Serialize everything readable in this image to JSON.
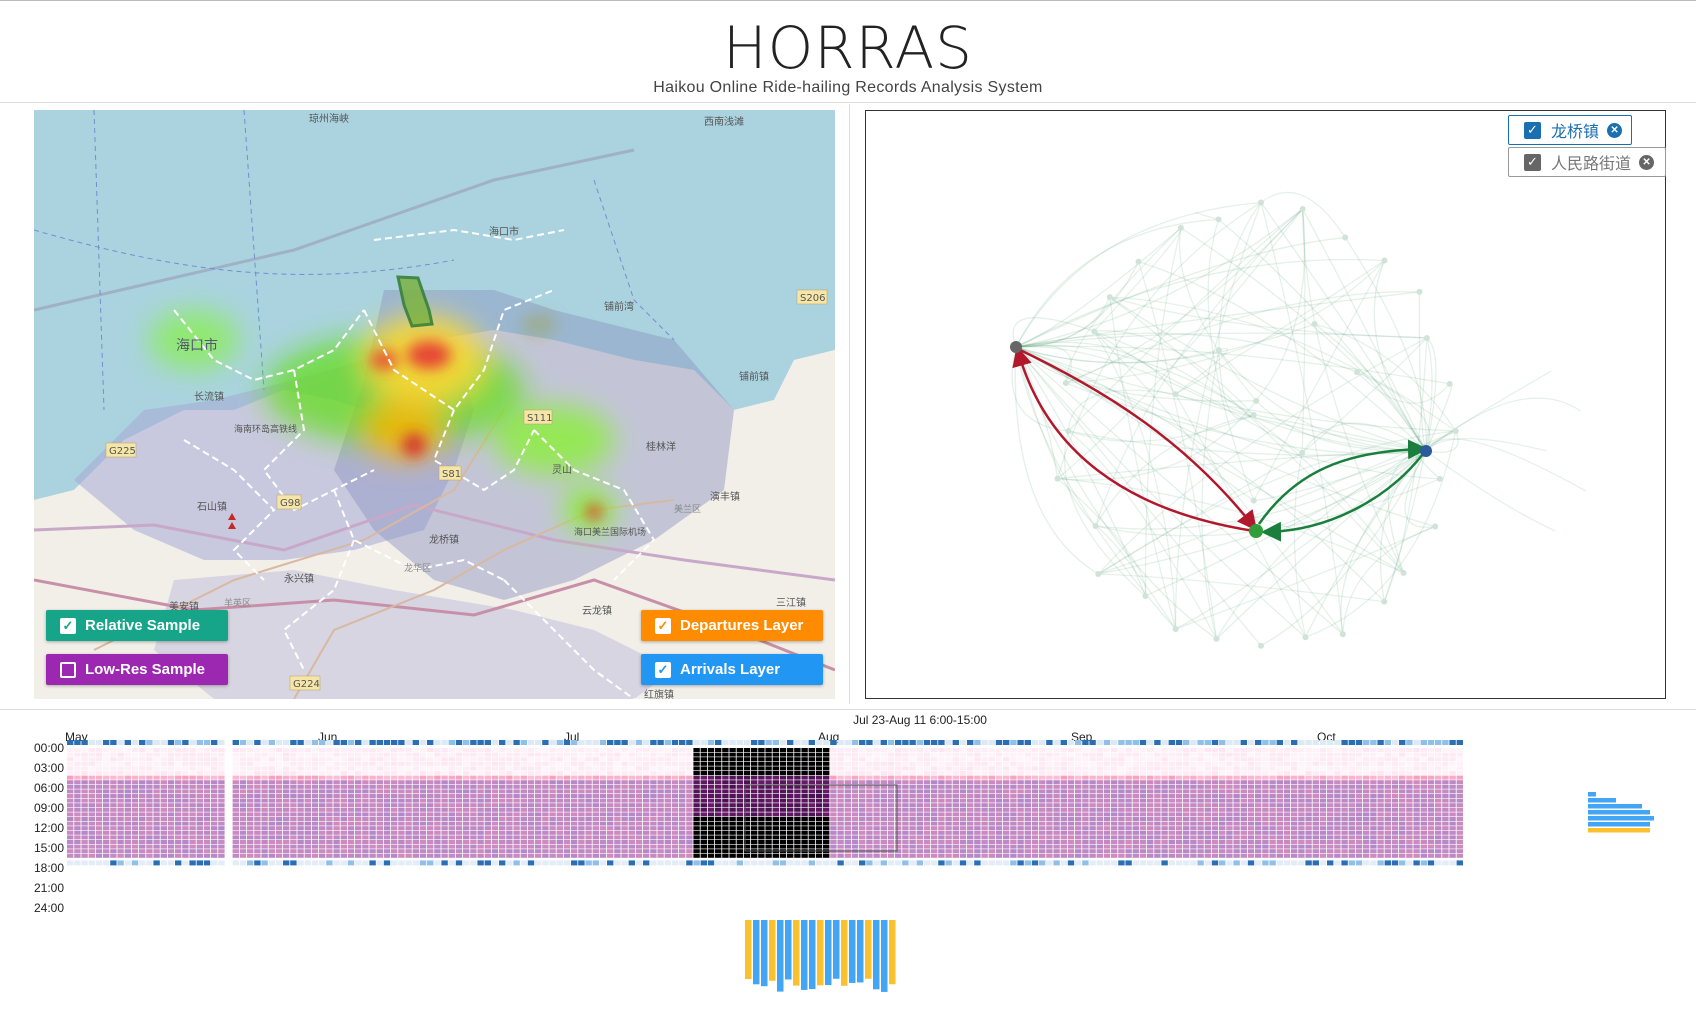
{
  "header": {
    "title": "HORRAS",
    "subtitle": "Haikou Online Ride-hailing Records Analysis System"
  },
  "map": {
    "place_labels": [
      "琼州海峡",
      "西南浅滩",
      "海口市",
      "海口市",
      "长流镇",
      "铺前湾",
      "铺前镇",
      "S206",
      "S111",
      "G225",
      "海南环岛高铁线",
      "桂林洋",
      "灵山",
      "演丰镇",
      "石山镇",
      "G98",
      "S81",
      "龙桥镇",
      "美兰区",
      "海口美兰国际机场",
      "永兴镇",
      "龙华区",
      "美安镇",
      "羊英区",
      "云龙镇",
      "三江镇",
      "G224",
      "红旗镇"
    ],
    "buttons": {
      "relative_sample": {
        "label": "Relative Sample",
        "checked": true,
        "color": "#17a589"
      },
      "low_res_sample": {
        "label": "Low-Res Sample",
        "checked": false,
        "color": "#9c27b0"
      },
      "departures_layer": {
        "label": "Departures Layer",
        "checked": true,
        "color": "#ff8c00"
      },
      "arrivals_layer": {
        "label": "Arrivals Layer",
        "checked": true,
        "color": "#2196f3"
      }
    }
  },
  "graph": {
    "chips": [
      {
        "label": "龙桥镇",
        "checked": true,
        "color": "#1a6fb0"
      },
      {
        "label": "人民路街道",
        "checked": true,
        "color": "#666666"
      }
    ]
  },
  "timeline": {
    "selection_label": "Jul 23-Aug 11   6:00-15:00",
    "months": [
      "May",
      "Jun",
      "Jul",
      "Aug",
      "Sep",
      "Oct"
    ],
    "hours": [
      "00:00",
      "03:00",
      "06:00",
      "09:00",
      "12:00",
      "15:00",
      "18:00",
      "21:00",
      "24:00"
    ],
    "colors": {
      "arrivals": "#42a5f5",
      "departures": "#fbc02d",
      "heat_low": "#fde0ef",
      "heat_mid": "#b388c9",
      "heat_high": "#3d1048"
    }
  }
}
